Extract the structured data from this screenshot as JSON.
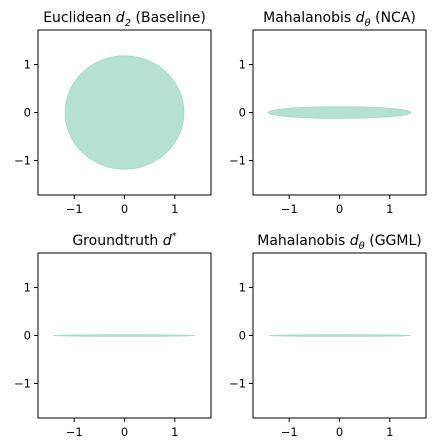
{
  "chart_data": [
    {
      "type": "ellipse",
      "title": "Euclidean",
      "title_symbol": "d",
      "title_sub": "2",
      "title_suffix": " (Baseline)",
      "xlim": [
        -1.72,
        1.72
      ],
      "ylim": [
        -1.72,
        1.72
      ],
      "xticks": [
        -1,
        0,
        1
      ],
      "yticks": [
        -1,
        0,
        1
      ],
      "show_xtick_labels": true,
      "show_ytick_labels": true,
      "ellipse": {
        "cx": 0,
        "cy": 0,
        "rx": 1.18,
        "ry": 1.18
      },
      "color": "#a8dcc8"
    },
    {
      "type": "ellipse",
      "title": "Mahalanobis",
      "title_symbol": "d",
      "title_sub": "θ",
      "title_suffix": " (NCA)",
      "xlim": [
        -1.72,
        1.72
      ],
      "ylim": [
        -1.72,
        1.72
      ],
      "xticks": [
        -1,
        0,
        1
      ],
      "yticks": [
        -1,
        0,
        1
      ],
      "show_xtick_labels": true,
      "show_ytick_labels": true,
      "ellipse": {
        "cx": 0,
        "cy": 0,
        "rx": 1.42,
        "ry": 0.12
      },
      "color": "#a8dcc8"
    },
    {
      "type": "ellipse",
      "title": "Groundtruth",
      "title_symbol": "d",
      "title_sup": "*",
      "title_suffix": "",
      "xlim": [
        -1.72,
        1.72
      ],
      "ylim": [
        -1.72,
        1.72
      ],
      "xticks": [
        -1,
        0,
        1
      ],
      "yticks": [
        -1,
        0,
        1
      ],
      "show_xtick_labels": true,
      "show_ytick_labels": true,
      "ellipse": {
        "cx": 0,
        "cy": 0,
        "rx": 1.42,
        "ry": 0.01
      },
      "color": "#a8dcc8"
    },
    {
      "type": "ellipse",
      "title": "Mahalanobis",
      "title_symbol": "d",
      "title_sub": "θ",
      "title_suffix": " (GGML)",
      "xlim": [
        -1.72,
        1.72
      ],
      "ylim": [
        -1.72,
        1.72
      ],
      "xticks": [
        -1,
        0,
        1
      ],
      "yticks": [
        -1,
        0,
        1
      ],
      "show_xtick_labels": true,
      "show_ytick_labels": true,
      "ellipse": {
        "cx": 0,
        "cy": 0,
        "rx": 1.42,
        "ry": 0.01
      },
      "color": "#a8dcc8"
    }
  ],
  "tick_labels": {
    "-1": "−1",
    "0": "0",
    "1": "1"
  }
}
